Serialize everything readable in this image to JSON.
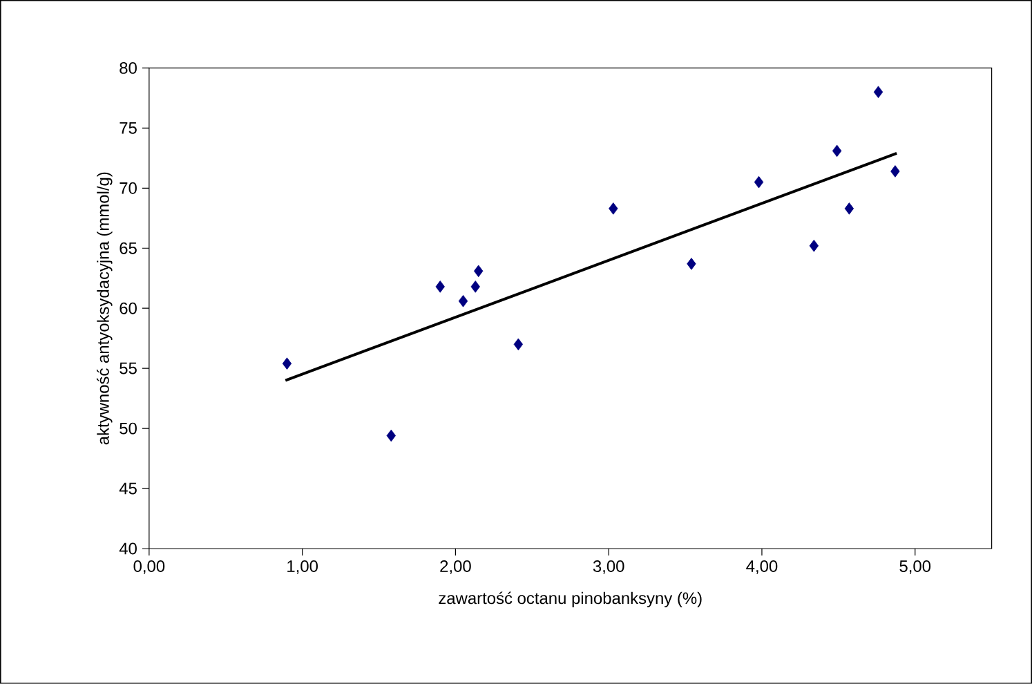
{
  "chart_data": {
    "type": "scatter",
    "xlabel": "zawartość octanu pinobanksyny (%)",
    "ylabel": "aktywność antyoksydacyjna (mmol/g)",
    "xlim": [
      0,
      5.5
    ],
    "ylim": [
      40,
      80
    ],
    "xticks": [
      {
        "value": 0,
        "label": "0,00"
      },
      {
        "value": 1,
        "label": "1,00"
      },
      {
        "value": 2,
        "label": "2,00"
      },
      {
        "value": 3,
        "label": "3,00"
      },
      {
        "value": 4,
        "label": "4,00"
      },
      {
        "value": 5,
        "label": "5,00"
      }
    ],
    "yticks": [
      40,
      45,
      50,
      55,
      60,
      65,
      70,
      75,
      80
    ],
    "grid": false,
    "marker": "diamond",
    "series": [
      {
        "color": "#000080",
        "x": [
          0.9,
          1.58,
          1.9,
          2.05,
          2.13,
          2.15,
          2.41,
          3.03,
          3.54,
          3.98,
          4.34,
          4.49,
          4.57,
          4.76,
          4.87
        ],
        "values": [
          55.4,
          49.4,
          61.8,
          60.6,
          61.8,
          63.1,
          57.0,
          68.3,
          63.7,
          70.5,
          65.2,
          73.1,
          68.3,
          78.0,
          71.4
        ]
      },
      {
        "type": "line",
        "color": "#000000",
        "marker": "none",
        "line_style": "solid",
        "x": [
          0.89,
          4.88
        ],
        "values": [
          54.0,
          72.9
        ]
      }
    ]
  }
}
